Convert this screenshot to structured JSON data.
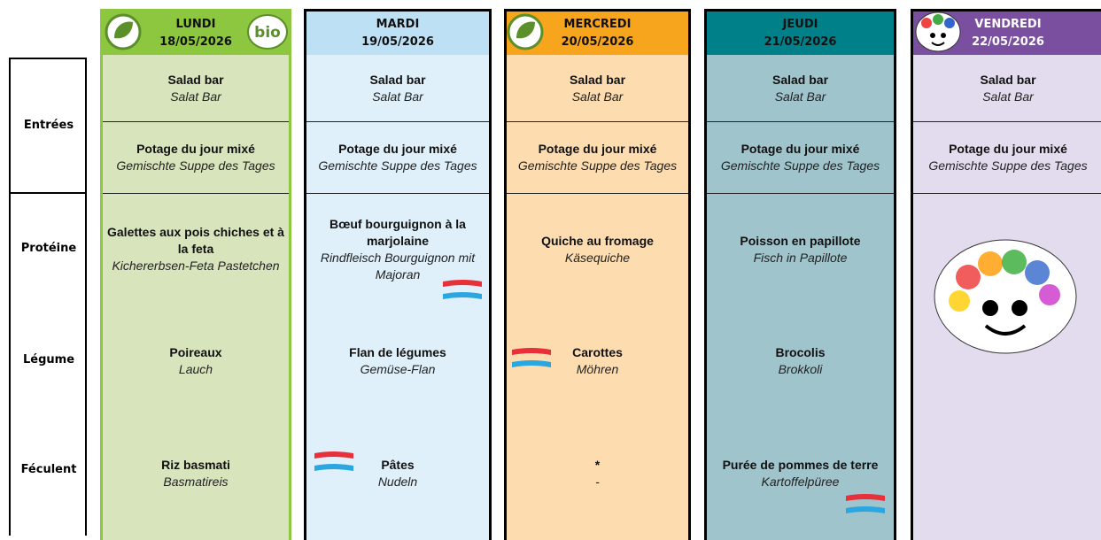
{
  "row_labels": [
    "Entrées",
    "Protéine",
    "Légume",
    "Féculent"
  ],
  "days": [
    {
      "name": "LUNDI",
      "date": "18/05/2026",
      "salad": {
        "fr": "Salad bar",
        "de": "Salat Bar"
      },
      "potage": {
        "fr": "Potage du jour mixé",
        "de": "Gemischte Suppe des Tages"
      },
      "proteine": {
        "fr": "Galettes aux pois chiches et à la feta",
        "de": "Kichererbsen-Feta Pastetchen"
      },
      "legume": {
        "fr": "Poireaux",
        "de": "Lauch"
      },
      "feculent": {
        "fr": "Riz basmati",
        "de": "Basmatireis"
      }
    },
    {
      "name": "MARDI",
      "date": "19/05/2026",
      "salad": {
        "fr": "Salad bar",
        "de": "Salat Bar"
      },
      "potage": {
        "fr": "Potage du jour mixé",
        "de": "Gemischte Suppe des Tages"
      },
      "proteine": {
        "fr": "Bœuf bourguignon à la marjolaine",
        "de": "Rindfleisch Bourguignon mit Majoran"
      },
      "legume": {
        "fr": "Flan de légumes",
        "de": "Gemüse-Flan"
      },
      "feculent": {
        "fr": "Pâtes",
        "de": "Nudeln"
      }
    },
    {
      "name": "MERCREDI",
      "date": "20/05/2026",
      "salad": {
        "fr": "Salad bar",
        "de": "Salat Bar"
      },
      "potage": {
        "fr": "Potage du jour mixé",
        "de": "Gemischte Suppe des Tages"
      },
      "proteine": {
        "fr": "Quiche au fromage",
        "de": "Käsequiche"
      },
      "legume": {
        "fr": "Carottes",
        "de": "Möhren"
      },
      "feculent": {
        "fr": "*",
        "de": "-"
      }
    },
    {
      "name": "JEUDI",
      "date": "21/05/2026",
      "salad": {
        "fr": "Salad bar",
        "de": "Salat Bar"
      },
      "potage": {
        "fr": "Potage du jour mixé",
        "de": "Gemischte Suppe des Tages"
      },
      "proteine": {
        "fr": "Poisson en papillote",
        "de": "Fisch in Papillote"
      },
      "legume": {
        "fr": "Brocolis",
        "de": "Brokkoli"
      },
      "feculent": {
        "fr": "Purée de pommes de terre",
        "de": "Kartoffelpüree"
      }
    },
    {
      "name": "VENDREDI",
      "date": "22/05/2026",
      "salad": {
        "fr": "Salad bar",
        "de": "Salat Bar"
      },
      "potage": {
        "fr": "Potage du jour mixé",
        "de": "Gemischte Suppe des Tages"
      }
    }
  ]
}
